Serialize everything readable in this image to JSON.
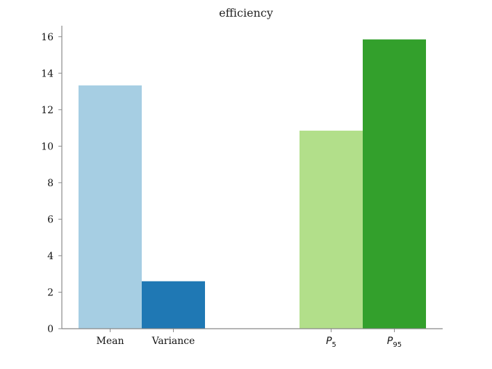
{
  "chart_data": {
    "type": "bar",
    "title": "efficiency",
    "xlabel": "",
    "ylabel": "",
    "ylim": [
      0,
      16.6
    ],
    "yticks": [
      0,
      2,
      4,
      6,
      8,
      10,
      12,
      14,
      16
    ],
    "grid": false,
    "legend": "none",
    "bars": [
      {
        "label": "Mean",
        "label_main": "Mean",
        "label_sub": "",
        "value": 13.33,
        "color": "#a6cee3"
      },
      {
        "label": "Variance",
        "label_main": "Variance",
        "label_sub": "",
        "value": 2.6,
        "color": "#1f78b4"
      },
      {
        "label": "P_5",
        "label_main": "P",
        "label_sub": "5",
        "value": 10.85,
        "color": "#b2df8a"
      },
      {
        "label": "P_95",
        "label_main": "P",
        "label_sub": "95",
        "value": 15.85,
        "color": "#33a02c"
      }
    ]
  }
}
